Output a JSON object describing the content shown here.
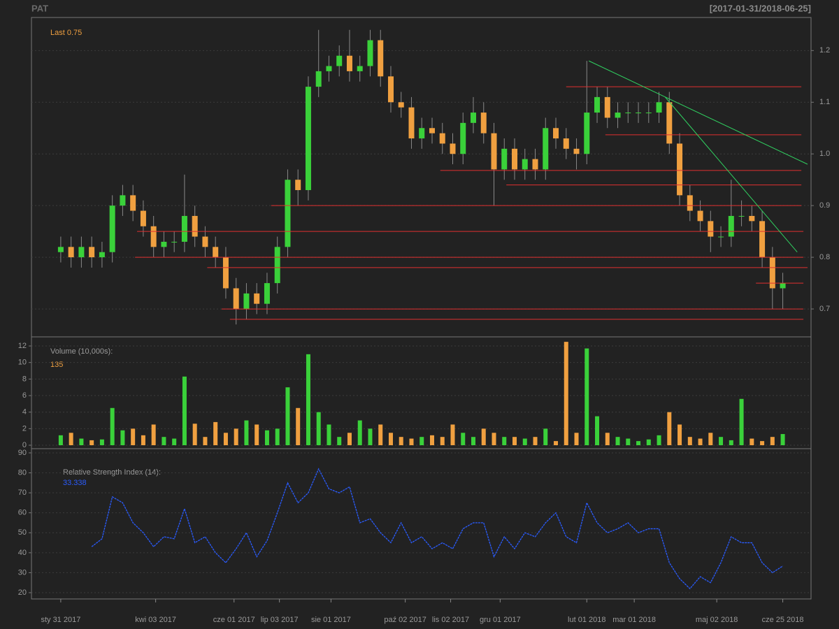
{
  "chart_data": [
    {
      "type": "candlestick",
      "title": "PAT",
      "subtitle": "[2017-01-31/2018-06-25]",
      "annotation": "Last 0.75",
      "up_color": "#3ad13a",
      "down_color": "#f0a040",
      "grid": true,
      "xlim": [
        -14.2,
        363.7
      ],
      "ylim": [
        0.646,
        1.264
      ],
      "yticks": [
        0.7,
        0.8,
        0.9,
        {
          "value": 1,
          "label": "1.0"
        },
        1.1,
        1.2
      ],
      "x": [
        0,
        5,
        10,
        15,
        20,
        25,
        30,
        35,
        40,
        45,
        50,
        55,
        60,
        65,
        70,
        75,
        80,
        85,
        90,
        95,
        100,
        105,
        110,
        115,
        120,
        125,
        130,
        135,
        140,
        145,
        150,
        155,
        160,
        165,
        170,
        175,
        180,
        185,
        190,
        195,
        200,
        205,
        210,
        215,
        220,
        225,
        230,
        235,
        240,
        245,
        250,
        255,
        260,
        265,
        270,
        275,
        280,
        285,
        290,
        295,
        300,
        305,
        310,
        315,
        320,
        325,
        330,
        335,
        340,
        345,
        350
      ],
      "open": [
        0.81,
        0.82,
        0.8,
        0.82,
        0.8,
        0.81,
        0.9,
        0.92,
        0.89,
        0.86,
        0.82,
        0.83,
        0.83,
        0.88,
        0.84,
        0.82,
        0.8,
        0.74,
        0.7,
        0.73,
        0.71,
        0.75,
        0.82,
        0.95,
        0.93,
        1.13,
        1.16,
        1.17,
        1.19,
        1.16,
        1.17,
        1.22,
        1.15,
        1.1,
        1.09,
        1.03,
        1.05,
        1.04,
        1.02,
        1.0,
        1.06,
        1.08,
        1.04,
        0.97,
        1.01,
        0.97,
        0.99,
        0.97,
        1.05,
        1.03,
        1.01,
        1.0,
        1.08,
        1.11,
        1.07,
        1.08,
        1.08,
        1.08,
        1.08,
        1.1,
        1.02,
        0.92,
        0.89,
        0.87,
        0.84,
        0.84,
        0.88,
        0.88,
        0.87,
        0.8,
        0.74
      ],
      "high": [
        0.84,
        0.84,
        0.84,
        0.84,
        0.83,
        0.92,
        0.94,
        0.94,
        0.91,
        0.88,
        0.85,
        0.85,
        0.96,
        0.9,
        0.86,
        0.84,
        0.82,
        0.76,
        0.75,
        0.75,
        0.77,
        0.84,
        0.97,
        0.97,
        1.15,
        1.24,
        1.19,
        1.21,
        1.24,
        1.19,
        1.24,
        1.24,
        1.17,
        1.12,
        1.11,
        1.07,
        1.07,
        1.06,
        1.04,
        1.08,
        1.11,
        1.1,
        1.06,
        1.03,
        1.03,
        1.01,
        1.01,
        1.07,
        1.07,
        1.05,
        1.03,
        1.18,
        1.13,
        1.13,
        1.1,
        1.1,
        1.1,
        1.1,
        1.12,
        1.12,
        1.04,
        0.94,
        0.91,
        0.89,
        0.86,
        0.95,
        0.91,
        0.9,
        0.89,
        0.82,
        0.77
      ],
      "low": [
        0.79,
        0.78,
        0.78,
        0.78,
        0.78,
        0.79,
        0.88,
        0.87,
        0.84,
        0.8,
        0.8,
        0.81,
        0.81,
        0.82,
        0.8,
        0.78,
        0.72,
        0.67,
        0.68,
        0.69,
        0.69,
        0.73,
        0.8,
        0.9,
        0.91,
        1.11,
        1.14,
        1.15,
        1.14,
        1.14,
        1.15,
        1.13,
        1.08,
        1.07,
        1.01,
        1.01,
        1.02,
        1.0,
        0.98,
        0.98,
        1.04,
        1.02,
        0.9,
        0.95,
        0.95,
        0.95,
        0.95,
        0.95,
        1.01,
        0.99,
        0.97,
        0.98,
        1.06,
        1.05,
        1.05,
        1.06,
        1.06,
        1.06,
        1.06,
        1.0,
        0.9,
        0.87,
        0.85,
        0.81,
        0.82,
        0.82,
        0.86,
        0.85,
        0.78,
        0.7,
        0.7
      ],
      "close": [
        0.82,
        0.8,
        0.82,
        0.8,
        0.81,
        0.9,
        0.92,
        0.89,
        0.86,
        0.82,
        0.83,
        0.83,
        0.88,
        0.84,
        0.82,
        0.8,
        0.74,
        0.7,
        0.73,
        0.71,
        0.75,
        0.82,
        0.95,
        0.93,
        1.13,
        1.16,
        1.17,
        1.19,
        1.16,
        1.17,
        1.22,
        1.15,
        1.1,
        1.09,
        1.03,
        1.05,
        1.04,
        1.02,
        1.0,
        1.06,
        1.08,
        1.04,
        0.97,
        1.01,
        0.97,
        0.99,
        0.97,
        1.05,
        1.03,
        1.01,
        1.0,
        1.08,
        1.11,
        1.07,
        1.08,
        1.08,
        1.08,
        1.08,
        1.1,
        1.02,
        0.92,
        0.89,
        0.87,
        0.84,
        0.84,
        0.88,
        0.88,
        0.87,
        0.8,
        0.74,
        0.75
      ],
      "lines": [
        {
          "color": "#e03030",
          "x": [
            245,
            359
          ],
          "y": [
            1.13,
            1.13
          ]
        },
        {
          "color": "#e03030",
          "x": [
            264,
            359
          ],
          "y": [
            1.037,
            1.037
          ]
        },
        {
          "color": "#e03030",
          "x": [
            184,
            359
          ],
          "y": [
            0.968,
            0.968
          ]
        },
        {
          "color": "#e03030",
          "x": [
            216,
            359
          ],
          "y": [
            0.94,
            0.94
          ]
        },
        {
          "color": "#e03030",
          "x": [
            102,
            359
          ],
          "y": [
            0.9,
            0.9
          ]
        },
        {
          "color": "#e03030",
          "x": [
            37,
            360
          ],
          "y": [
            0.85,
            0.85
          ]
        },
        {
          "color": "#e03030",
          "x": [
            36,
            360
          ],
          "y": [
            0.8,
            0.8
          ]
        },
        {
          "color": "#e03030",
          "x": [
            71,
            362
          ],
          "y": [
            0.78,
            0.78
          ]
        },
        {
          "color": "#e03030",
          "x": [
            337,
            360
          ],
          "y": [
            0.75,
            0.75
          ]
        },
        {
          "color": "#e03030",
          "x": [
            78,
            360
          ],
          "y": [
            0.7,
            0.7
          ]
        },
        {
          "color": "#e03030",
          "x": [
            82,
            360
          ],
          "y": [
            0.68,
            0.68
          ]
        },
        {
          "color": "#30d060",
          "x": [
            256,
            362
          ],
          "y": [
            1.18,
            0.98
          ]
        },
        {
          "color": "#30d060",
          "x": [
            293,
            357
          ],
          "y": [
            1.11,
            0.81
          ]
        }
      ]
    },
    {
      "type": "volume",
      "title": "Volume (10,000s):",
      "annotation": "135",
      "grid": true,
      "ylim": [
        -0.42,
        13.1
      ],
      "yticks": [
        0,
        2,
        4,
        6,
        8,
        10,
        12
      ],
      "values": [
        1.2,
        1.5,
        0.8,
        0.6,
        0.7,
        4.5,
        1.8,
        2.0,
        1.2,
        2.5,
        1.0,
        0.8,
        8.3,
        2.6,
        1.0,
        2.8,
        1.5,
        2.0,
        3.0,
        2.5,
        1.8,
        2.0,
        7.0,
        4.5,
        11.0,
        4.0,
        2.5,
        1.0,
        1.5,
        3.0,
        2.0,
        2.5,
        1.5,
        1.0,
        0.8,
        1.0,
        1.2,
        1.0,
        2.5,
        1.5,
        1.0,
        2.0,
        1.5,
        1.0,
        1.0,
        0.8,
        1.0,
        2.0,
        0.5,
        12.5,
        1.5,
        11.7,
        3.5,
        1.5,
        1.0,
        0.8,
        0.5,
        0.7,
        1.2,
        4.0,
        2.5,
        1.0,
        0.8,
        1.5,
        1.0,
        0.6,
        5.6,
        0.8,
        0.5,
        1.0,
        1.35
      ]
    },
    {
      "type": "line",
      "title": "Relative Strength Index (14):",
      "annotation": "33.338",
      "color": "#2a5cff",
      "grid": true,
      "xlim": [
        -14.2,
        363.7
      ],
      "ylim": [
        16.85,
        92.1
      ],
      "yticks": [
        20,
        30,
        40,
        50,
        60,
        70,
        80,
        90
      ],
      "xticks": [
        {
          "value": 0,
          "label": "sty 31 2017"
        },
        {
          "value": 46,
          "label": "kwi 03 2017"
        },
        {
          "value": 84,
          "label": "cze 01 2017"
        },
        {
          "value": 106,
          "label": "lip 03 2017"
        },
        {
          "value": 131,
          "label": "sie 01 2017"
        },
        {
          "value": 167,
          "label": "paź 02 2017"
        },
        {
          "value": 189,
          "label": "lis 02 2017"
        },
        {
          "value": 213,
          "label": "gru 01 2017"
        },
        {
          "value": 255,
          "label": "lut 01 2018"
        },
        {
          "value": 278,
          "label": "mar 01 2018"
        },
        {
          "value": 318,
          "label": "maj 02 2018"
        },
        {
          "value": 350,
          "label": "cze 25 2018"
        }
      ],
      "x": [
        15,
        20,
        25,
        30,
        35,
        40,
        45,
        50,
        55,
        60,
        65,
        70,
        75,
        80,
        85,
        90,
        95,
        100,
        105,
        110,
        115,
        120,
        125,
        130,
        135,
        140,
        145,
        150,
        155,
        160,
        165,
        170,
        175,
        180,
        185,
        190,
        195,
        200,
        205,
        210,
        215,
        220,
        225,
        230,
        235,
        240,
        245,
        250,
        255,
        260,
        265,
        270,
        275,
        280,
        285,
        290,
        295,
        300,
        305,
        310,
        315,
        320,
        325,
        330,
        335,
        340,
        345,
        350
      ],
      "values": [
        43,
        47,
        68,
        65,
        55,
        50,
        43,
        48,
        47,
        62,
        45,
        48,
        40,
        35,
        42,
        50,
        38,
        46,
        60,
        75,
        65,
        70,
        82,
        72,
        70,
        73,
        55,
        57,
        50,
        45,
        55,
        45,
        48,
        42,
        45,
        42,
        52,
        55,
        55,
        38,
        48,
        42,
        50,
        48,
        55,
        60,
        48,
        45,
        65,
        55,
        50,
        52,
        55,
        50,
        52,
        52,
        35,
        27,
        22,
        28,
        25,
        35,
        48,
        45,
        45,
        35,
        30,
        33.338
      ]
    }
  ]
}
